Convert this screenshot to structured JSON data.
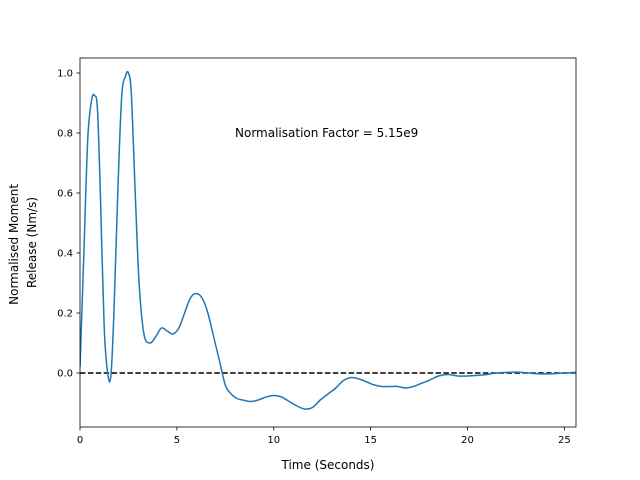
{
  "chart_data": {
    "type": "line",
    "title": "",
    "xlabel": "Time (Seconds)",
    "ylabel": [
      "Normalised Moment",
      "Release (Nm/s)"
    ],
    "xlim": [
      0,
      25.6
    ],
    "ylim": [
      -0.18,
      1.05
    ],
    "xticks": [
      0,
      5,
      10,
      15,
      20,
      25
    ],
    "yticks": [
      0.0,
      0.2,
      0.4,
      0.6,
      0.8,
      1.0
    ],
    "xtick_labels": [
      "0",
      "5",
      "10",
      "15",
      "20",
      "25"
    ],
    "ytick_labels": [
      "0.0",
      "0.2",
      "0.4",
      "0.6",
      "0.8",
      "1.0"
    ],
    "grid": false,
    "annotation": {
      "text": "Normalisation Factor = 5.15e9",
      "x": 8.0,
      "y": 0.8
    },
    "reference_line": {
      "y": 0.0,
      "style": "dashed",
      "color": "#000000"
    },
    "series": [
      {
        "color": "#1f77b4",
        "x": [
          0,
          0.2,
          0.4,
          0.6,
          0.75,
          0.9,
          1.05,
          1.25,
          1.45,
          1.6,
          1.75,
          1.95,
          2.15,
          2.35,
          2.5,
          2.65,
          2.85,
          3.05,
          3.3,
          3.6,
          3.9,
          4.2,
          4.5,
          4.8,
          5.1,
          5.4,
          5.7,
          6.0,
          6.3,
          6.6,
          6.9,
          7.2,
          7.5,
          7.8,
          8.1,
          8.4,
          8.8,
          9.2,
          9.6,
          10.0,
          10.4,
          10.8,
          11.2,
          11.6,
          12.0,
          12.4,
          12.8,
          13.2,
          13.6,
          14.0,
          14.4,
          14.8,
          15.2,
          15.6,
          16.0,
          16.4,
          16.8,
          17.2,
          17.6,
          18.0,
          18.5,
          19.0,
          19.5,
          20.0,
          20.5,
          21.0,
          21.5,
          22.0,
          22.5,
          23.0,
          23.5,
          24.0,
          24.5,
          25.0,
          25.6
        ],
        "y": [
          0.02,
          0.4,
          0.78,
          0.91,
          0.925,
          0.88,
          0.6,
          0.15,
          -0.01,
          -0.005,
          0.2,
          0.6,
          0.92,
          0.99,
          1.0,
          0.93,
          0.6,
          0.3,
          0.13,
          0.1,
          0.12,
          0.15,
          0.14,
          0.13,
          0.15,
          0.2,
          0.25,
          0.265,
          0.25,
          0.2,
          0.12,
          0.04,
          -0.04,
          -0.07,
          -0.085,
          -0.09,
          -0.095,
          -0.09,
          -0.08,
          -0.075,
          -0.08,
          -0.095,
          -0.11,
          -0.12,
          -0.115,
          -0.09,
          -0.07,
          -0.05,
          -0.025,
          -0.015,
          -0.02,
          -0.03,
          -0.04,
          -0.045,
          -0.045,
          -0.045,
          -0.05,
          -0.045,
          -0.035,
          -0.025,
          -0.01,
          -0.005,
          -0.01,
          -0.01,
          -0.008,
          -0.005,
          0.0,
          0.002,
          0.003,
          0.001,
          -0.002,
          -0.003,
          -0.002,
          0.0,
          0.002
        ]
      }
    ]
  }
}
